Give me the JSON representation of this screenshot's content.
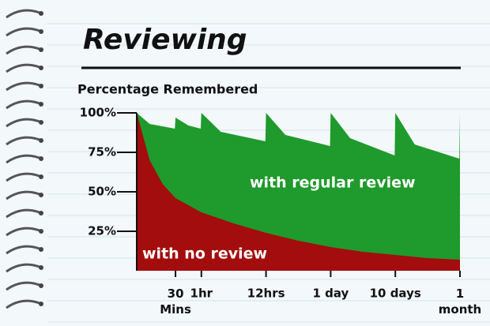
{
  "chart_data": {
    "type": "area",
    "title": "Reviewing",
    "y_label": "Percentage Remembered",
    "xlim": [
      0,
      5
    ],
    "xticks": [
      {
        "value": 0.6,
        "label": "30\nMins"
      },
      {
        "value": 1,
        "label": "1hr"
      },
      {
        "value": 2,
        "label": "12hrs"
      },
      {
        "value": 3,
        "label": "1 day"
      },
      {
        "value": 4,
        "label": "10 days"
      },
      {
        "value": 5,
        "label": "1\nmonth"
      }
    ],
    "ylim": [
      0,
      100
    ],
    "yticks": [
      {
        "value": 25,
        "label": "25%"
      },
      {
        "value": 50,
        "label": "50%"
      },
      {
        "value": 75,
        "label": "75%"
      },
      {
        "value": 100,
        "label": "100%"
      }
    ],
    "series": [
      {
        "name": "with regular review",
        "color": "#1f9a2c",
        "x": [
          0,
          0.2,
          0.59,
          0.6,
          0.8,
          0.99,
          1,
          1.3,
          1.99,
          2,
          2.3,
          2.99,
          3,
          3.3,
          3.99,
          4,
          4.3,
          4.99,
          5
        ],
        "values": [
          100,
          93,
          90,
          97,
          92,
          90,
          100,
          88,
          82,
          100,
          86,
          79,
          100,
          84,
          73,
          100,
          80,
          71,
          100
        ]
      },
      {
        "name": "with no review",
        "color": "#a30d0d",
        "x": [
          0,
          0.2,
          0.4,
          0.6,
          1,
          1.5,
          2,
          2.5,
          3,
          3.5,
          4,
          4.5,
          5
        ],
        "values": [
          100,
          70,
          55,
          46,
          37,
          30,
          24,
          19,
          15,
          12,
          10,
          8,
          7
        ]
      }
    ]
  }
}
